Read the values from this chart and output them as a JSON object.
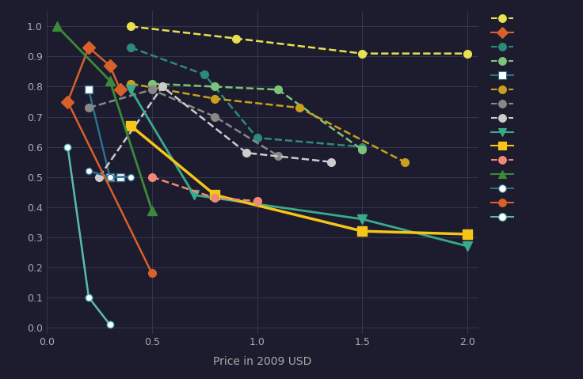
{
  "series": [
    {
      "color": "#e8e050",
      "ls": "--",
      "marker": "o",
      "ms": 7,
      "lw": 1.8,
      "mfc": "#e8e050",
      "mec": "#e8e050",
      "x": [
        0.4,
        0.9,
        1.5,
        2.0
      ],
      "y": [
        1.0,
        0.96,
        0.91,
        0.91
      ]
    },
    {
      "color": "#d95f2b",
      "ls": "-",
      "marker": "D",
      "ms": 8,
      "lw": 1.8,
      "mfc": "#d95f2b",
      "mec": "#d95f2b",
      "x": [
        0.1,
        0.2,
        0.3,
        0.35
      ],
      "y": [
        0.75,
        0.93,
        0.87,
        0.79
      ]
    },
    {
      "color": "#2e8b7a",
      "ls": "--",
      "marker": "o",
      "ms": 7,
      "lw": 1.8,
      "mfc": "#2e8b7a",
      "mec": "#2e8b7a",
      "x": [
        0.4,
        0.75,
        1.0,
        1.5
      ],
      "y": [
        0.93,
        0.84,
        0.63,
        0.6
      ]
    },
    {
      "comment": "light green dashed circle - (0.5,0.81),(0.8,0.80),(1.1,0.79),(1.5,0.59)",
      "color": "#7dc47a",
      "ls": "--",
      "marker": "o",
      "ms": 7,
      "lw": 1.8,
      "mfc": "#7dc47a",
      "mec": "#7dc47a",
      "x": [
        0.5,
        0.8,
        1.1,
        1.5
      ],
      "y": [
        0.81,
        0.8,
        0.79,
        0.59
      ]
    },
    {
      "color": "#2e6f8e",
      "ls": "-",
      "marker": "s",
      "ms": 7,
      "lw": 1.8,
      "mfc": "#ffffff",
      "mec": "#2e6f8e",
      "x": [
        0.2,
        0.3,
        0.35
      ],
      "y": [
        0.79,
        0.5,
        0.5
      ]
    },
    {
      "color": "#c8a020",
      "ls": "--",
      "marker": "o",
      "ms": 7,
      "lw": 1.8,
      "mfc": "#c8a020",
      "mec": "#c8a020",
      "x": [
        0.4,
        0.8,
        1.2,
        1.7
      ],
      "y": [
        0.81,
        0.76,
        0.73,
        0.55
      ]
    },
    {
      "comment": "gray dashed circle - (0.2,0.73),(0.5,0.79),(0.8,0.70),(1.1,0.57)",
      "color": "#888888",
      "ls": "--",
      "marker": "o",
      "ms": 7,
      "lw": 1.8,
      "mfc": "#888888",
      "mec": "#888888",
      "x": [
        0.2,
        0.5,
        0.8,
        1.1
      ],
      "y": [
        0.73,
        0.79,
        0.7,
        0.57
      ]
    },
    {
      "color": "#cccccc",
      "ls": "--",
      "marker": "o",
      "ms": 7,
      "lw": 1.8,
      "mfc": "#cccccc",
      "mec": "#cccccc",
      "x": [
        0.25,
        0.55,
        0.95,
        1.35
      ],
      "y": [
        0.5,
        0.8,
        0.58,
        0.55
      ]
    },
    {
      "color": "#3aaa8c",
      "ls": "-",
      "marker": "v",
      "ms": 8,
      "lw": 2.0,
      "mfc": "#3aaa8c",
      "mec": "#3aaa8c",
      "x": [
        0.4,
        0.7,
        1.5,
        2.0
      ],
      "y": [
        0.79,
        0.44,
        0.36,
        0.27
      ]
    },
    {
      "comment": "bright yellow solid square - (0.4,0.67),(0.8,0.44),(1.5,0.32),(2.0,0.31)",
      "color": "#f5c518",
      "ls": "-",
      "marker": "s",
      "ms": 9,
      "lw": 2.5,
      "mfc": "#f5c518",
      "mec": "#f5c518",
      "x": [
        0.4,
        0.8,
        1.5,
        2.0
      ],
      "y": [
        0.67,
        0.44,
        0.32,
        0.31
      ]
    },
    {
      "color": "#f08878",
      "ls": "--",
      "marker": "o",
      "ms": 7,
      "lw": 1.8,
      "mfc": "#f08878",
      "mec": "#f08878",
      "x": [
        0.5,
        0.8,
        1.0
      ],
      "y": [
        0.5,
        0.43,
        0.42
      ]
    },
    {
      "color": "#3a8a3a",
      "ls": "-",
      "marker": "^",
      "ms": 9,
      "lw": 2.0,
      "mfc": "#3a8a3a",
      "mec": "#3a8a3a",
      "x": [
        0.05,
        0.3,
        0.5
      ],
      "y": [
        1.0,
        0.82,
        0.39
      ]
    },
    {
      "color": "#2e6f8e",
      "ls": "-",
      "marker": "o",
      "ms": 6,
      "lw": 1.8,
      "mfc": "#ffffff",
      "mec": "#2e6f8e",
      "x": [
        0.2,
        0.3,
        0.4
      ],
      "y": [
        0.52,
        0.5,
        0.5
      ]
    },
    {
      "color": "#d95f2b",
      "ls": "-",
      "marker": "o",
      "ms": 7,
      "lw": 1.8,
      "mfc": "#d95f2b",
      "mec": "#d95f2b",
      "x": [
        0.1,
        0.5
      ],
      "y": [
        0.75,
        0.18
      ]
    },
    {
      "color": "#5abcb0",
      "ls": "-",
      "marker": "o",
      "ms": 6,
      "lw": 1.8,
      "mfc": "#ffffff",
      "mec": "#5abcb0",
      "x": [
        0.1,
        0.2,
        0.3
      ],
      "y": [
        0.6,
        0.1,
        0.01
      ]
    }
  ],
  "legend_entries": [
    {
      "color": "#e8e050",
      "ls": "--",
      "marker": "o",
      "mfc": "#e8e050"
    },
    {
      "color": "#d95f2b",
      "ls": "-",
      "marker": "D",
      "mfc": "#d95f2b"
    },
    {
      "color": "#2e8b7a",
      "ls": "--",
      "marker": "o",
      "mfc": "#2e8b7a"
    },
    {
      "color": "#7dc47a",
      "ls": "--",
      "marker": "o",
      "mfc": "#7dc47a"
    },
    {
      "color": "#2e6f8e",
      "ls": "-",
      "marker": "s",
      "mfc": "#ffffff"
    },
    {
      "color": "#c8a020",
      "ls": "--",
      "marker": "o",
      "mfc": "#c8a020"
    },
    {
      "color": "#888888",
      "ls": "--",
      "marker": "o",
      "mfc": "#888888"
    },
    {
      "color": "#cccccc",
      "ls": "--",
      "marker": "o",
      "mfc": "#cccccc"
    },
    {
      "color": "#3aaa8c",
      "ls": "-",
      "marker": "v",
      "mfc": "#3aaa8c"
    },
    {
      "color": "#f5c518",
      "ls": "-",
      "marker": "s",
      "mfc": "#f5c518"
    },
    {
      "color": "#f08878",
      "ls": "--",
      "marker": "o",
      "mfc": "#f08878"
    },
    {
      "color": "#3a8a3a",
      "ls": "-",
      "marker": "^",
      "mfc": "#3a8a3a"
    },
    {
      "color": "#2e6f8e",
      "ls": "-",
      "marker": "o",
      "mfc": "#ffffff"
    },
    {
      "color": "#d95f2b",
      "ls": "-",
      "marker": "o",
      "mfc": "#d95f2b"
    },
    {
      "color": "#5abcb0",
      "ls": "-",
      "marker": "o",
      "mfc": "#ffffff"
    }
  ],
  "bg_color": "#1c1c2e",
  "grid_color": "#404060",
  "tick_color": "#aaaaaa",
  "xlabel": "Price in 2009 USD",
  "xlim": [
    0,
    2.05
  ],
  "ylim": [
    -0.02,
    1.05
  ],
  "xticks": [
    0,
    0.5,
    1.0,
    1.5,
    2.0
  ],
  "yticks": [
    0,
    0.1,
    0.2,
    0.3,
    0.4,
    0.5,
    0.6,
    0.7,
    0.8,
    0.9,
    1.0
  ]
}
